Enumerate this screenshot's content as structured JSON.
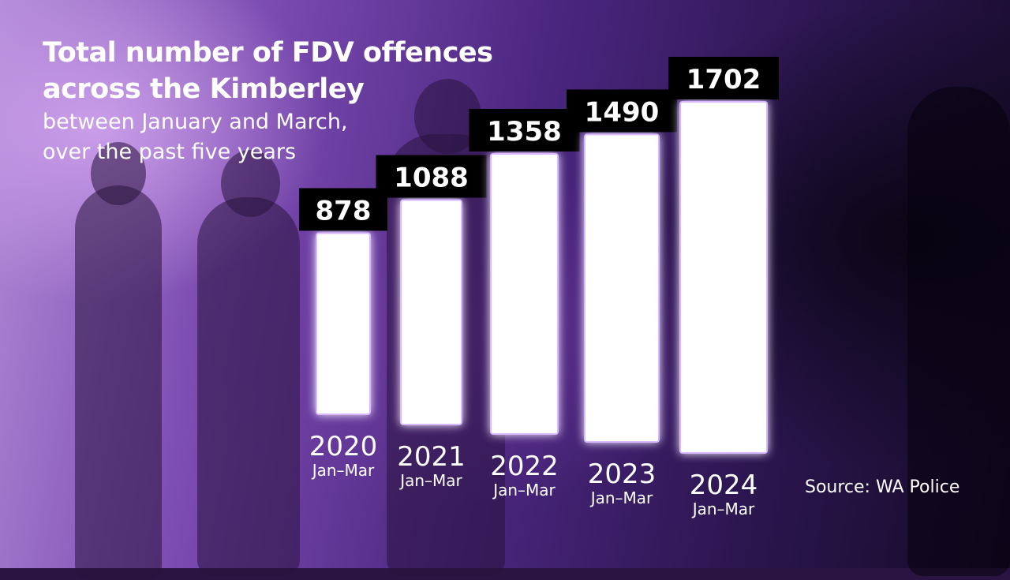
{
  "chart_data": {
    "type": "bar",
    "title": "Total number of FDV offences across the Kimberley",
    "title_lines": [
      "Total number of FDV offences",
      "across the Kimberley"
    ],
    "subtitle_lines": [
      "between January and March,",
      "over the past five years"
    ],
    "categories": [
      "2020",
      "2021",
      "2022",
      "2023",
      "2024"
    ],
    "category_sublabel": "Jan–Mar",
    "values": [
      878,
      1088,
      1358,
      1490,
      1702
    ],
    "source": "Source: WA Police",
    "grid": false,
    "legend": "none",
    "colors": {
      "bar": "#ffffff",
      "bar_glow": "#d9b8ff",
      "label_box": "#000000",
      "text": "#ffffff"
    }
  }
}
